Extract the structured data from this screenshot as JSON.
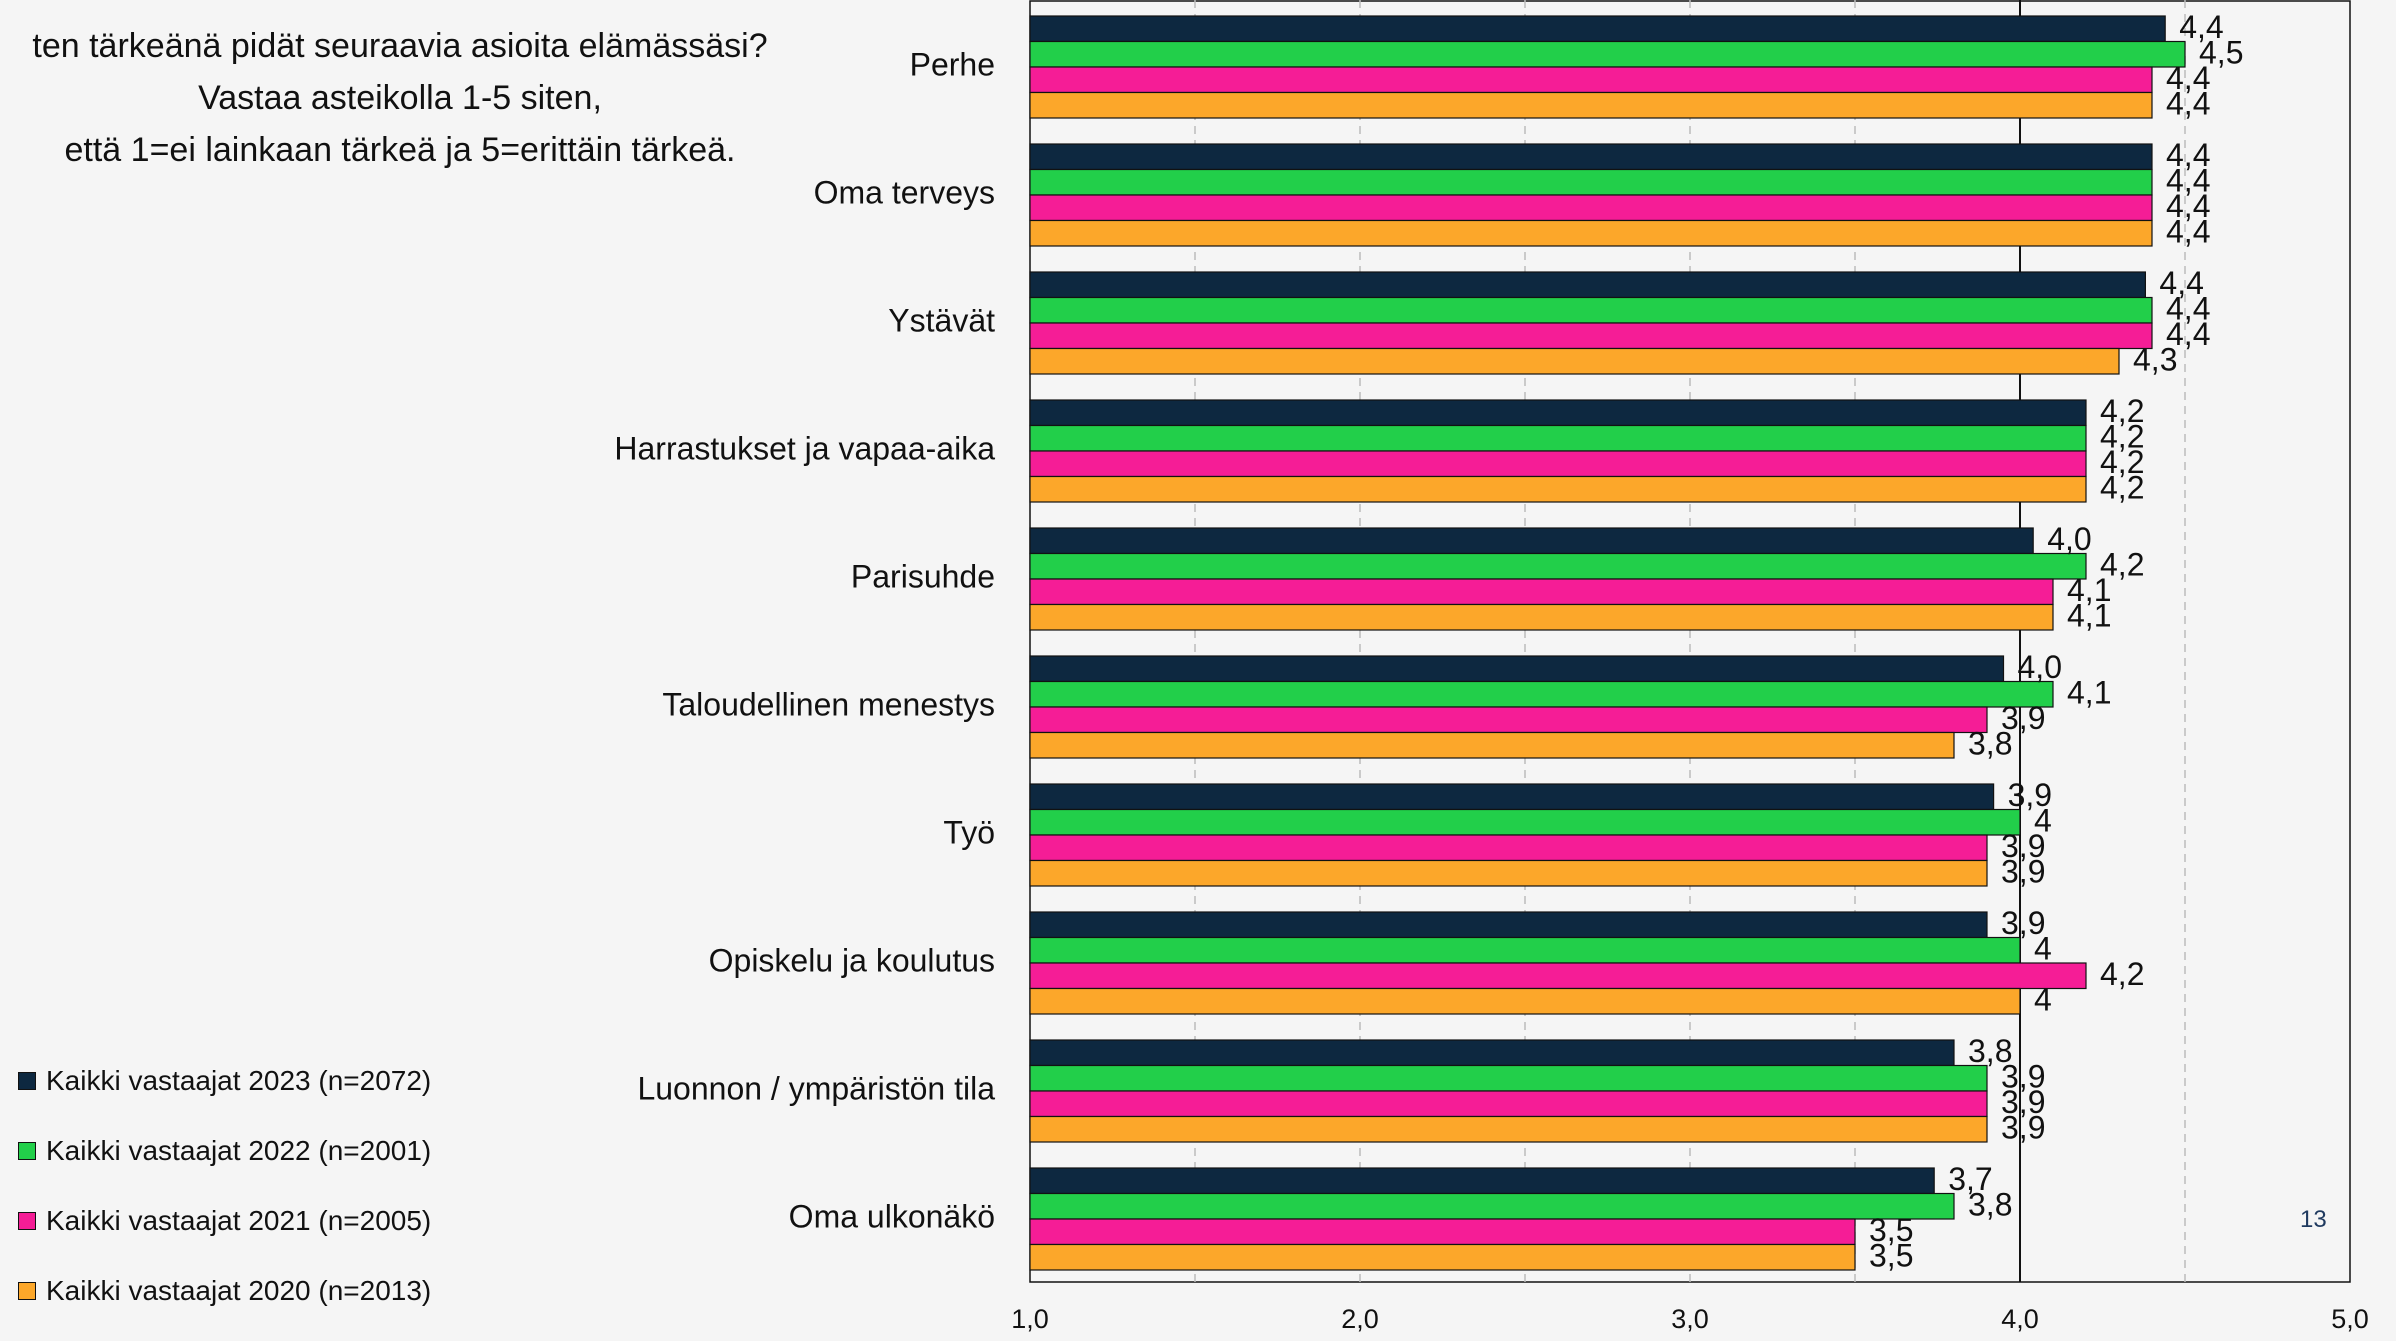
{
  "question": "ten tärkeänä pidät seuraavia asioita elämässäsi?\nVastaa asteikolla 1-5 siten,\nettä 1=ei lainkaan tärkeä ja 5=erittäin tärkeä.",
  "page_number": "13",
  "colors": {
    "series_2023": "#0d2840",
    "series_2022": "#22cf4a",
    "series_2021": "#f51d96",
    "series_2020": "#fca72a",
    "grid": "#bbbbbb",
    "axis": "#111111"
  },
  "chart_data": {
    "type": "bar",
    "orientation": "horizontal",
    "title": "",
    "xlabel": "",
    "ylabel": "",
    "xlim": [
      1.0,
      5.0
    ],
    "xticks": [
      "1,0",
      "2,0",
      "3,0",
      "4,0",
      "5,0"
    ],
    "grid": "vertical",
    "legend_position": "bottom-left",
    "categories": [
      "Perhe",
      "Oma terveys",
      "Ystävät",
      "Harrastukset ja vapaa-aika",
      "Parisuhde",
      "Taloudellinen menestys",
      "Työ",
      "Opiskelu ja koulutus",
      "Luonnon / ympäristön tila",
      "Oma ulkonäkö"
    ],
    "series": [
      {
        "name": "Kaikki vastaajat 2023 (n=2072)",
        "values": [
          4.44,
          4.4,
          4.38,
          4.2,
          4.04,
          3.95,
          3.92,
          3.9,
          3.8,
          3.74
        ],
        "labels": [
          "4,4",
          "4,4",
          "4,4",
          "4,2",
          "4,0",
          "4,0",
          "3,9",
          "3,9",
          "3,8",
          "3,7"
        ]
      },
      {
        "name": "Kaikki vastaajat 2022 (n=2001)",
        "values": [
          4.5,
          4.4,
          4.4,
          4.2,
          4.2,
          4.1,
          4.0,
          4.0,
          3.9,
          3.8
        ],
        "labels": [
          "4,5",
          "4,4",
          "4,4",
          "4,2",
          "4,2",
          "4,1",
          "4",
          "4",
          "3,9",
          "3,8"
        ]
      },
      {
        "name": "Kaikki vastaajat 2021 (n=2005)",
        "values": [
          4.4,
          4.4,
          4.4,
          4.2,
          4.1,
          3.9,
          3.9,
          4.2,
          3.9,
          3.5
        ],
        "labels": [
          "4,4",
          "4,4",
          "4,4",
          "4,2",
          "4,1",
          "3,9",
          "3,9",
          "4,2",
          "3,9",
          "3,5"
        ]
      },
      {
        "name": "Kaikki vastaajat 2020 (n=2013)",
        "values": [
          4.4,
          4.4,
          4.3,
          4.2,
          4.1,
          3.8,
          3.9,
          4.0,
          3.9,
          3.5
        ],
        "labels": [
          "4,4",
          "4,4",
          "4,3",
          "4,2",
          "4,1",
          "3,8",
          "3,9",
          "4",
          "3,9",
          "3,5"
        ]
      }
    ]
  }
}
